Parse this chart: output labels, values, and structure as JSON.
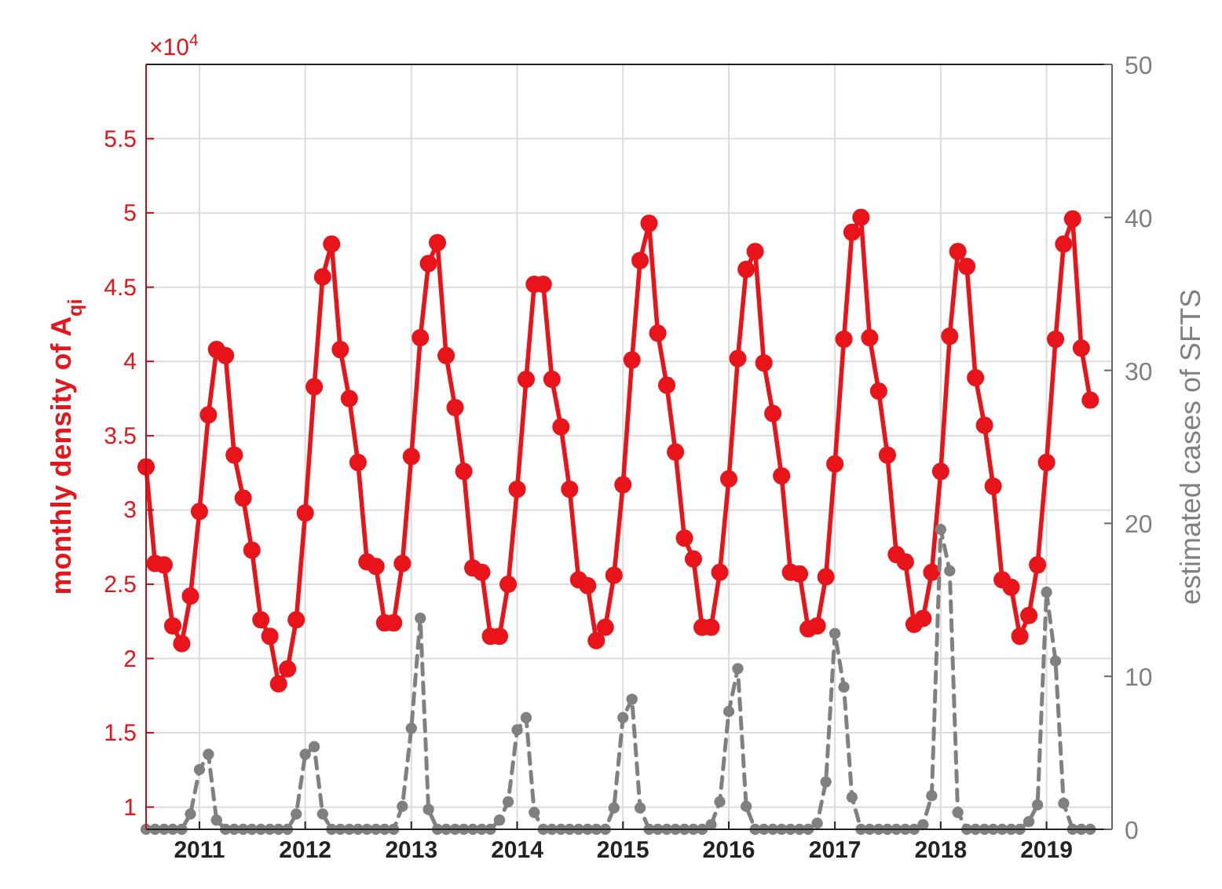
{
  "chart_data": {
    "type": "line",
    "ylabel": "monthly density of A$_{qi}$",
    "y2label": "estimated cases of SFTS",
    "annotations": [
      "×10$^{4}$"
    ],
    "x": [
      "2010-07",
      "2010-08",
      "2010-09",
      "2010-10",
      "2010-11",
      "2010-12",
      "2011-01",
      "2011-02",
      "2011-03",
      "2011-04",
      "2011-05",
      "2011-06",
      "2011-07",
      "2011-08",
      "2011-09",
      "2011-10",
      "2011-11",
      "2011-12",
      "2012-01",
      "2012-02",
      "2012-03",
      "2012-04",
      "2012-05",
      "2012-06",
      "2012-07",
      "2012-08",
      "2012-09",
      "2012-10",
      "2012-11",
      "2012-12",
      "2013-01",
      "2013-02",
      "2013-03",
      "2013-04",
      "2013-05",
      "2013-06",
      "2013-07",
      "2013-08",
      "2013-09",
      "2013-10",
      "2013-11",
      "2013-12",
      "2014-01",
      "2014-02",
      "2014-03",
      "2014-04",
      "2014-05",
      "2014-06",
      "2014-07",
      "2014-08",
      "2014-09",
      "2014-10",
      "2014-11",
      "2014-12",
      "2015-01",
      "2015-02",
      "2015-03",
      "2015-04",
      "2015-05",
      "2015-06",
      "2015-07",
      "2015-08",
      "2015-09",
      "2015-10",
      "2015-11",
      "2015-12",
      "2016-01",
      "2016-02",
      "2016-03",
      "2016-04",
      "2016-05",
      "2016-06",
      "2016-07",
      "2016-08",
      "2016-09",
      "2016-10",
      "2016-11",
      "2016-12",
      "2017-01",
      "2017-02",
      "2017-03",
      "2017-04",
      "2017-05",
      "2017-06",
      "2017-07",
      "2017-08",
      "2017-09",
      "2017-10",
      "2017-11",
      "2017-12",
      "2018-01",
      "2018-02",
      "2018-03",
      "2018-04",
      "2018-05",
      "2018-06",
      "2018-07",
      "2018-08",
      "2018-09",
      "2018-10",
      "2018-11",
      "2018-12",
      "2019-01",
      "2019-02",
      "2019-03",
      "2019-04",
      "2019-05",
      "2019-06"
    ],
    "series": [
      {
        "color": "#e8141a",
        "line_style": "solid",
        "marker": "circle",
        "values": [
          3.29,
          2.64,
          2.63,
          2.22,
          2.1,
          2.42,
          2.99,
          3.64,
          4.08,
          4.04,
          3.37,
          3.08,
          2.73,
          2.26,
          2.15,
          1.83,
          1.93,
          2.26,
          2.98,
          3.83,
          4.57,
          4.79,
          4.08,
          3.75,
          3.32,
          2.65,
          2.62,
          2.24,
          2.24,
          2.64,
          3.36,
          4.16,
          4.66,
          4.8,
          4.04,
          3.69,
          3.26,
          2.61,
          2.58,
          2.15,
          2.15,
          2.5,
          3.14,
          3.88,
          4.52,
          4.52,
          3.88,
          3.56,
          3.14,
          2.53,
          2.49,
          2.12,
          2.21,
          2.56,
          3.17,
          4.01,
          4.68,
          4.93,
          4.19,
          3.84,
          3.39,
          2.81,
          2.67,
          2.21,
          2.21,
          2.58,
          3.21,
          4.02,
          4.62,
          4.74,
          3.99,
          3.65,
          3.23,
          2.58,
          2.57,
          2.2,
          2.22,
          2.55,
          3.31,
          4.15,
          4.87,
          4.97,
          4.16,
          3.8,
          3.37,
          2.7,
          2.65,
          2.23,
          2.27,
          2.58,
          3.26,
          4.17,
          4.74,
          4.64,
          3.89,
          3.57,
          3.16,
          2.53,
          2.48,
          2.15,
          2.29,
          2.63,
          3.32,
          4.15,
          4.79,
          4.96,
          4.09,
          3.74
        ]
      },
      {
        "color": "#808080",
        "axis": "y2",
        "line_style": "dashed",
        "marker": "circle",
        "values": [
          0,
          0,
          0,
          0,
          0,
          1,
          3.9,
          4.9,
          0.6,
          0,
          0,
          0,
          0,
          0,
          0,
          0,
          0,
          1,
          4.9,
          5.4,
          1,
          0,
          0,
          0,
          0,
          0,
          0,
          0,
          0,
          1.5,
          6.6,
          13.8,
          1.3,
          0,
          0,
          0,
          0,
          0,
          0,
          0,
          0.6,
          1.8,
          6.5,
          7.3,
          1.1,
          0,
          0,
          0,
          0,
          0,
          0,
          0,
          0,
          1.4,
          7.3,
          8.5,
          1.4,
          0,
          0,
          0,
          0,
          0,
          0,
          0,
          0.3,
          1.8,
          7.7,
          10.5,
          1.5,
          0,
          0,
          0,
          0,
          0,
          0,
          0,
          0.4,
          3.1,
          12.8,
          9.3,
          2.1,
          0,
          0,
          0,
          0,
          0,
          0,
          0,
          0.3,
          2.2,
          19.6,
          16.9,
          1.1,
          0,
          0,
          0,
          0,
          0,
          0,
          0,
          0.5,
          1.6,
          15.5,
          11,
          1.7,
          0,
          0,
          0
        ]
      }
    ],
    "xlim": [
      "2010-07",
      "2019-08-15"
    ],
    "xticks": [
      "2011",
      "2012",
      "2013",
      "2014",
      "2015",
      "2016",
      "2017",
      "2018",
      "2019"
    ],
    "ylim": [
      0.85,
      6
    ],
    "yticks": [
      1,
      {
        "value": 1.5,
        "label": "1.5"
      },
      2,
      {
        "value": 2.5,
        "label": "2.5"
      },
      3,
      {
        "value": 3.5,
        "label": "3.5"
      },
      4,
      {
        "value": 4.5,
        "label": "4.5"
      },
      5,
      {
        "value": 5.5,
        "label": "5.5"
      }
    ],
    "y2lim": [
      0,
      50
    ],
    "y2ticks": [
      0,
      10,
      20,
      30,
      40,
      50
    ],
    "grid": true
  }
}
